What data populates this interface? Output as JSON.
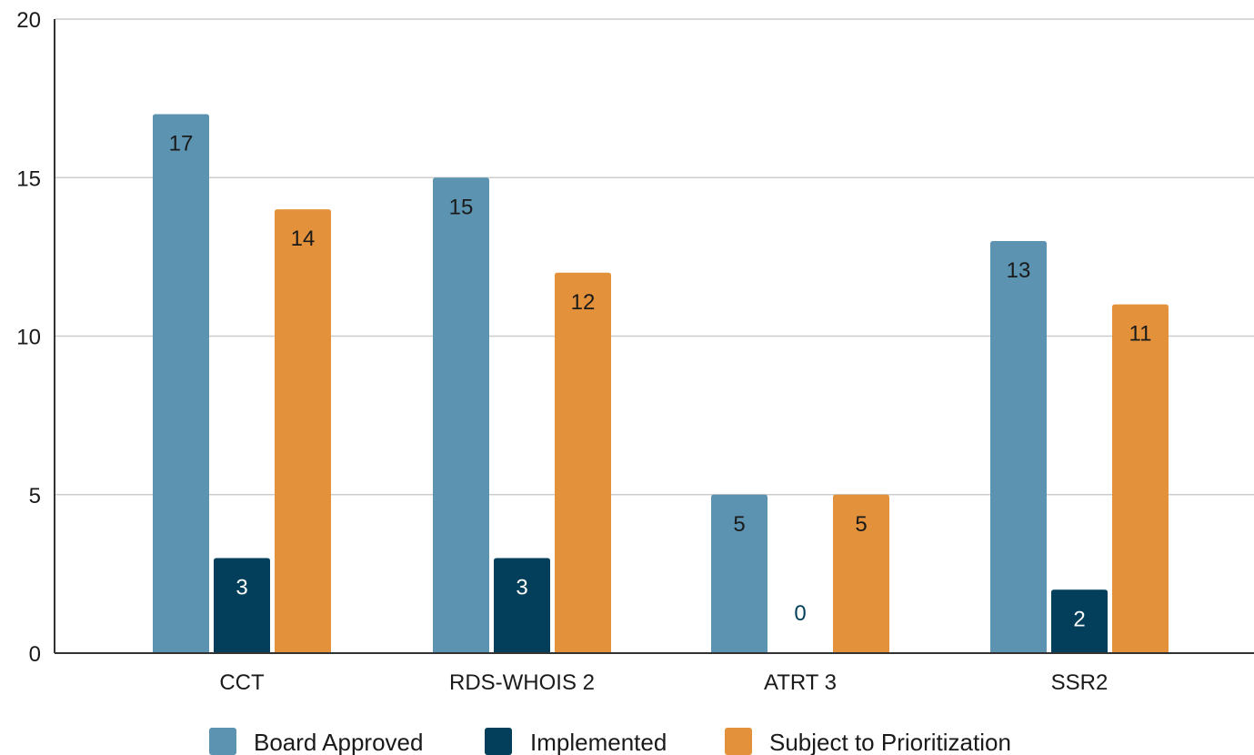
{
  "chart_data": {
    "type": "bar",
    "title": "",
    "xlabel": "",
    "ylabel": "",
    "categories": [
      "CCT",
      "RDS-WHOIS 2",
      "ATRT 3",
      "SSR2"
    ],
    "series": [
      {
        "name": "Board Approved",
        "color": "#5b93b0",
        "values": [
          17,
          15,
          5,
          13
        ]
      },
      {
        "name": "Implemented",
        "color": "#033f5b",
        "values": [
          3,
          3,
          0,
          2
        ]
      },
      {
        "name": "Subject to Prioritization",
        "color": "#e3913a",
        "values": [
          14,
          12,
          5,
          11
        ]
      }
    ],
    "ylim": [
      0,
      20
    ],
    "yticks": [
      0,
      5,
      10,
      15,
      20
    ],
    "grid": true,
    "legend": "bottom",
    "data_labels": true
  }
}
